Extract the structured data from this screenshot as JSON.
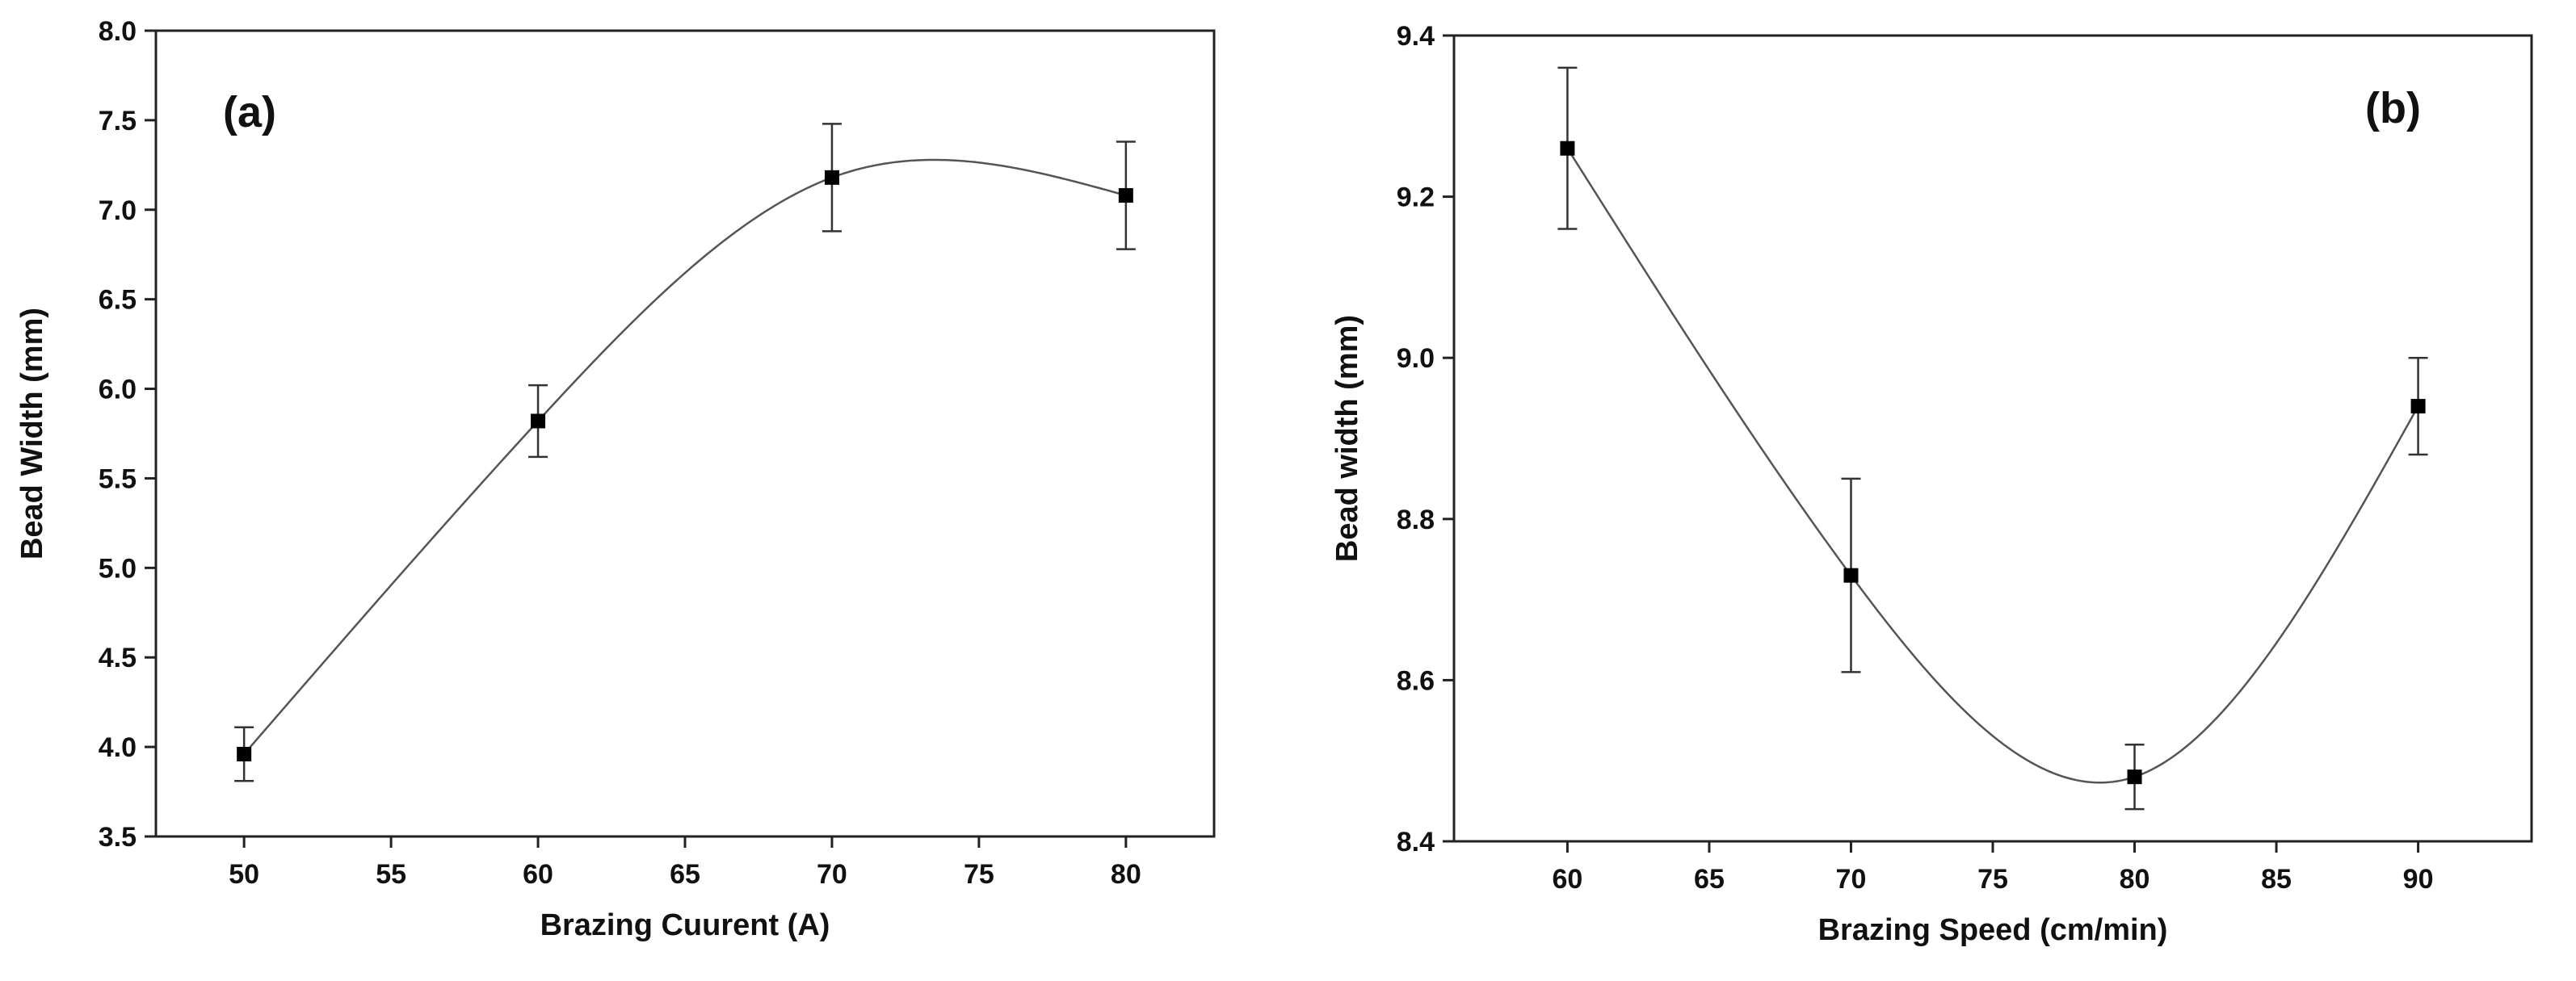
{
  "chart_data": [
    {
      "type": "scatter",
      "panel_label": "(a)",
      "xlabel": "Brazing Cuurent (A)",
      "ylabel": "Bead Width (mm)",
      "xlim": [
        47,
        83
      ],
      "ylim": [
        3.5,
        8.0
      ],
      "xticks": [
        50,
        55,
        60,
        65,
        70,
        75,
        80
      ],
      "yticks": [
        "3.5",
        "4.0",
        "4.5",
        "5.0",
        "5.5",
        "6.0",
        "6.5",
        "7.0",
        "7.5",
        "8.0"
      ],
      "grid": false,
      "fit_curve": "smooth",
      "series": [
        {
          "name": "Bead Width",
          "x": [
            50,
            60,
            70,
            80
          ],
          "y": [
            3.96,
            5.82,
            7.18,
            7.08
          ],
          "err": [
            0.15,
            0.2,
            0.3,
            0.3
          ]
        }
      ]
    },
    {
      "type": "scatter",
      "panel_label": "(b)",
      "xlabel": "Brazing Speed (cm/min)",
      "ylabel": "Bead width (mm)",
      "xlim": [
        56,
        94
      ],
      "ylim": [
        8.4,
        9.4
      ],
      "xticks": [
        60,
        65,
        70,
        75,
        80,
        85,
        90
      ],
      "yticks": [
        "8.4",
        "8.6",
        "8.8",
        "9.0",
        "9.2",
        "9.4"
      ],
      "grid": false,
      "fit_curve": "smooth",
      "series": [
        {
          "name": "Bead width",
          "x": [
            60,
            70,
            80,
            90
          ],
          "y": [
            9.26,
            8.73,
            8.48,
            8.94
          ],
          "err": [
            0.1,
            0.12,
            0.04,
            0.06
          ]
        }
      ]
    }
  ]
}
